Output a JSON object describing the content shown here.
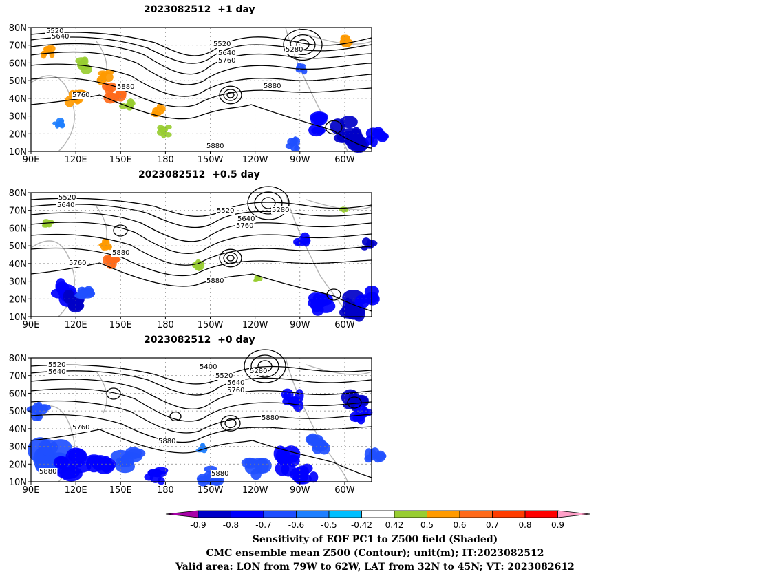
{
  "panels": [
    {
      "title": "2023082512  +1 day"
    },
    {
      "title": "2023082512  +0.5 day"
    },
    {
      "title": "2023082512  +0 day"
    }
  ],
  "axes": {
    "lat_labels": [
      "80N",
      "70N",
      "60N",
      "50N",
      "40N",
      "30N",
      "20N",
      "10N"
    ],
    "lon_labels": [
      "90E",
      "120E",
      "150E",
      "180",
      "150W",
      "120W",
      "90W",
      "60W"
    ]
  },
  "contour_labels": [
    [
      "5520",
      "5640",
      "5520",
      "5640",
      "5760",
      "5280",
      "5880",
      "5760",
      "5880",
      "5880"
    ],
    [
      "5520",
      "5640",
      "5520",
      "5640",
      "5760",
      "5280",
      "5880",
      "5760",
      "5880"
    ],
    [
      "5520",
      "5640",
      "5400",
      "5520",
      "5640",
      "5760",
      "5280",
      "5880",
      "5760",
      "5880",
      "5880",
      "5880"
    ]
  ],
  "colorbar": {
    "colors": [
      "#a800a8",
      "#0000c8",
      "#0000ff",
      "#1f4fff",
      "#1e7fff",
      "#00bfff",
      "#ffffff",
      "#98cd31",
      "#ff9a00",
      "#ff6a1a",
      "#ff3c00",
      "#ff0000",
      "#ffa0c8"
    ],
    "tick_labels": [
      "-0.9",
      "-0.8",
      "-0.7",
      "-0.6",
      "-0.5",
      "-0.42",
      "0.42",
      "0.5",
      "0.6",
      "0.7",
      "0.8",
      "0.9"
    ]
  },
  "caption": {
    "line1": "Sensitivity of EOF PC1 to Z500 field (Shaded)",
    "line2": "CMC ensemble mean Z500 (Contour); unit(m); IT:2023082512",
    "line3": "Valid area: LON from 79W to 62W, LAT from 32N to 45N; VT: 2023082612"
  }
}
